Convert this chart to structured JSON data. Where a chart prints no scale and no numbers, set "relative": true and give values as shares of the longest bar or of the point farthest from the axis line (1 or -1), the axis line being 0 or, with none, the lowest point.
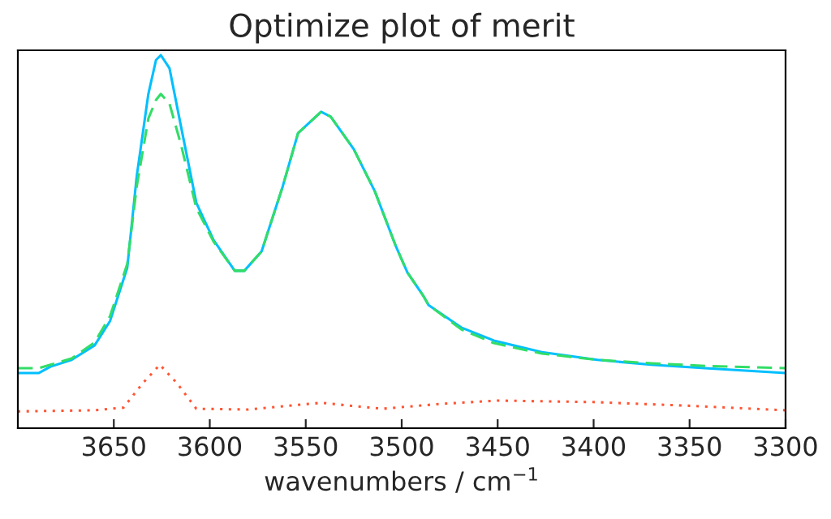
{
  "chart_data": {
    "type": "line",
    "title": "Optimize plot of merit",
    "xlabel": "wavenumbers / cm$^{−1}$",
    "relative": true,
    "tick_labels": "x",
    "grid": false,
    "legend": false,
    "xlim": [
      3700,
      3300
    ],
    "xticks": [
      3650,
      3600,
      3550,
      3500,
      3450,
      3400,
      3350,
      3300
    ],
    "series": [
      {
        "color": "#00bfff",
        "line_style": "solid",
        "x": [
          3700,
          3689,
          3683,
          3672,
          3660,
          3652,
          3643,
          3638,
          3632,
          3628,
          3625.5,
          3621,
          3615,
          3607,
          3598,
          3587,
          3582,
          3573,
          3562,
          3554,
          3542,
          3537,
          3525,
          3514,
          3503,
          3497,
          3489,
          3486,
          3469,
          3452,
          3427,
          3398,
          3370,
          3342,
          3300
        ],
        "values": [
          0.148,
          0.148,
          0.165,
          0.183,
          0.222,
          0.287,
          0.43,
          0.678,
          0.896,
          0.987,
          1.0,
          0.965,
          0.809,
          0.604,
          0.504,
          0.422,
          0.422,
          0.474,
          0.648,
          0.791,
          0.848,
          0.835,
          0.748,
          0.635,
          0.487,
          0.417,
          0.357,
          0.33,
          0.27,
          0.235,
          0.204,
          0.183,
          0.17,
          0.161,
          0.148
        ]
      },
      {
        "color": "#33dd66",
        "line_style": "dashed",
        "x": [
          3700,
          3689,
          3683,
          3672,
          3660,
          3652,
          3643,
          3638,
          3632,
          3628,
          3625.5,
          3621,
          3615,
          3607,
          3598,
          3587,
          3582,
          3573,
          3562,
          3554,
          3542,
          3537,
          3525,
          3514,
          3503,
          3497,
          3489,
          3486,
          3469,
          3452,
          3427,
          3398,
          3370,
          3342,
          3300
        ],
        "values": [
          0.161,
          0.161,
          0.17,
          0.187,
          0.23,
          0.3,
          0.44,
          0.65,
          0.83,
          0.88,
          0.896,
          0.87,
          0.76,
          0.59,
          0.5,
          0.422,
          0.422,
          0.474,
          0.648,
          0.791,
          0.848,
          0.835,
          0.748,
          0.635,
          0.487,
          0.417,
          0.357,
          0.33,
          0.265,
          0.228,
          0.2,
          0.183,
          0.174,
          0.167,
          0.161
        ]
      },
      {
        "color": "#ff5533",
        "line_style": "dotted",
        "x": [
          3700,
          3660,
          3645,
          3635,
          3626,
          3617,
          3607,
          3580,
          3542,
          3510,
          3480,
          3450,
          3400,
          3350,
          3300
        ],
        "values": [
          0.045,
          0.048,
          0.055,
          0.12,
          0.17,
          0.12,
          0.052,
          0.05,
          0.068,
          0.052,
          0.065,
          0.074,
          0.07,
          0.06,
          0.048
        ]
      }
    ]
  }
}
